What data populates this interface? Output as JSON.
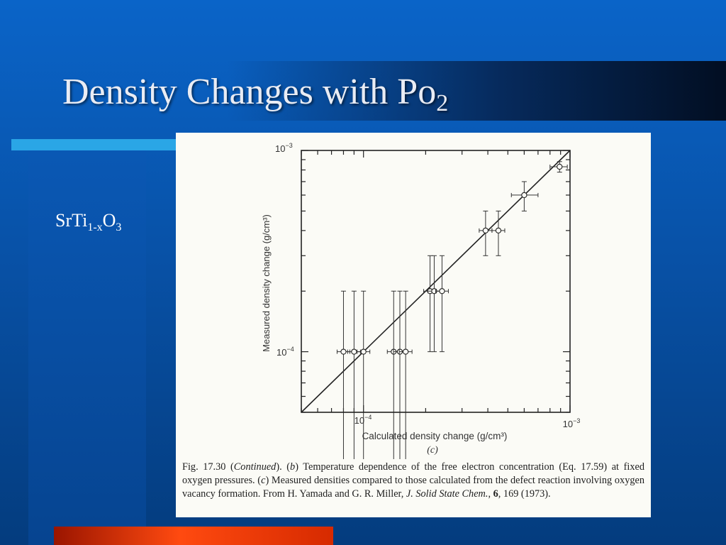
{
  "slide": {
    "title": "Density Changes with Po",
    "title_sub": "2"
  },
  "formula": {
    "main": "SrTi",
    "sub1": "1-x",
    "main2": "O",
    "sub2": "3"
  },
  "colors": {
    "background": "#0852a8",
    "accent_bar": "#2aa6e6",
    "bottom_bar": "#ff4a10",
    "figure_bg": "#fbfbf6"
  },
  "chart_data": {
    "type": "scatter",
    "xscale": "log",
    "yscale": "log",
    "xlim": [
      5e-05,
      0.001
    ],
    "ylim": [
      5e-05,
      0.001
    ],
    "xlabel": "Calculated density change (g/cm³)",
    "ylabel": "Measured density change (g/cm³)",
    "panel_label": "(c)",
    "x_ticks": [
      {
        "value": 0.0001,
        "base": "10",
        "exp": "−4"
      },
      {
        "value": 0.001,
        "base": "10",
        "exp": "−3"
      }
    ],
    "y_ticks": [
      {
        "value": 0.0001,
        "base": "10",
        "exp": "−4"
      },
      {
        "value": 0.001,
        "base": "10",
        "exp": "−3"
      }
    ],
    "reference_line": {
      "x": [
        5e-05,
        0.001
      ],
      "y": [
        5e-05,
        0.001
      ]
    },
    "points": [
      {
        "x": 8e-05,
        "y": 0.0001,
        "ylow": 2e-05,
        "yhigh": 0.0002
      },
      {
        "x": 9e-05,
        "y": 0.0001,
        "ylow": 2e-05,
        "yhigh": 0.0002
      },
      {
        "x": 0.0001,
        "y": 0.0001,
        "ylow": 2e-05,
        "yhigh": 0.0002
      },
      {
        "x": 0.00014,
        "y": 0.0001,
        "ylow": 2e-05,
        "yhigh": 0.0002
      },
      {
        "x": 0.00015,
        "y": 0.0001,
        "ylow": 2e-05,
        "yhigh": 0.0002
      },
      {
        "x": 0.00016,
        "y": 0.0001,
        "ylow": 2e-05,
        "yhigh": 0.0002
      },
      {
        "x": 0.00021,
        "y": 0.0002,
        "ylow": 0.0001,
        "yhigh": 0.0003
      },
      {
        "x": 0.00022,
        "y": 0.0002,
        "ylow": 0.0001,
        "yhigh": 0.0003
      },
      {
        "x": 0.00024,
        "y": 0.0002,
        "ylow": 0.0001,
        "yhigh": 0.0003
      },
      {
        "x": 0.00039,
        "y": 0.0004,
        "ylow": 0.0003,
        "yhigh": 0.0005
      },
      {
        "x": 0.00045,
        "y": 0.0004,
        "ylow": 0.0003,
        "yhigh": 0.0005
      },
      {
        "x": 0.0006,
        "y": 0.0006,
        "ylow": 0.0005,
        "yhigh": 0.0007,
        "xlow": 0.00052,
        "xhigh": 0.0007
      },
      {
        "x": 0.00089,
        "y": 0.00083,
        "ylow": 0.00078,
        "yhigh": 0.00088,
        "xlow": 0.0008,
        "xhigh": 0.00097
      }
    ],
    "caption": {
      "fig_label": "Fig. 17.30 (",
      "continued": "Continued",
      "after_continued": ").    (",
      "b": "b",
      "part_b": ") Temperature dependence of the free electron concentration (Eq. 17.59) at fixed oxygen pressures. (",
      "c": "c",
      "part_c": ") Measured densities compared to those calculated from the defect reaction involving oxygen vacancy formation. From H. Yamada and G. R. Miller, ",
      "journal": "J. Solid State Chem.",
      "sep": ", ",
      "volume": "6",
      "pages_year": ", 169 (1973)."
    }
  }
}
